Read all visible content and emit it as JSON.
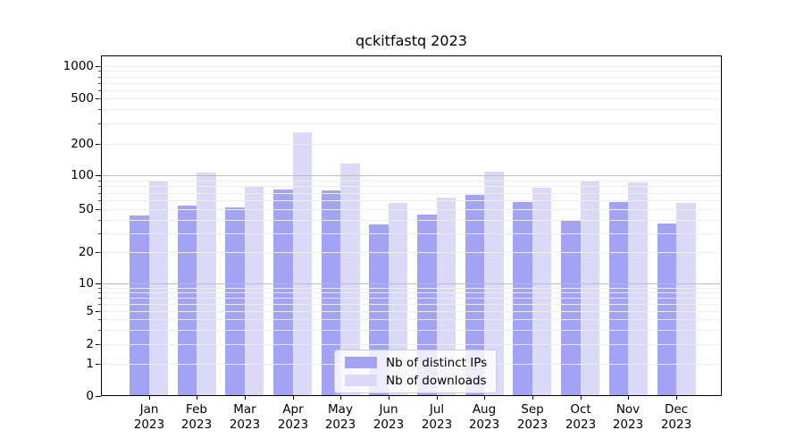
{
  "title": "qckitfastq 2023",
  "chart_data": {
    "type": "bar",
    "title": "qckitfastq 2023",
    "yscale": "symlog",
    "grid": true,
    "legend_position": "lower center",
    "categories": [
      "Jan 2023",
      "Feb 2023",
      "Mar 2023",
      "Apr 2023",
      "May 2023",
      "Jun 2023",
      "Jul 2023",
      "Aug 2023",
      "Sep 2023",
      "Oct 2023",
      "Nov 2023",
      "Dec 2023"
    ],
    "series": [
      {
        "name": "Nb of distinct IPs",
        "color": "#a3a3f5",
        "values": [
          44,
          54,
          52,
          75,
          73,
          36,
          45,
          67,
          58,
          40,
          58,
          37
        ]
      },
      {
        "name": "Nb of downloads",
        "color": "#dadaf8",
        "values": [
          90,
          106,
          79,
          255,
          130,
          57,
          63,
          108,
          78,
          90,
          87,
          57
        ]
      }
    ],
    "yticks": [
      0,
      1,
      2,
      5,
      10,
      20,
      50,
      100,
      200,
      500,
      1000
    ],
    "ytick_labels": [
      "0",
      "1",
      "2",
      "5",
      "10",
      "20",
      "50",
      "100",
      "200",
      "500",
      "1000"
    ],
    "ylim": [
      0,
      1000
    ]
  },
  "colors": {
    "ip_bar": "#a3a3f5",
    "downloads_bar": "#dadaf8",
    "major_grid": "#bdbdbd",
    "minor_grid": "#ededed",
    "spine": "#000000"
  }
}
